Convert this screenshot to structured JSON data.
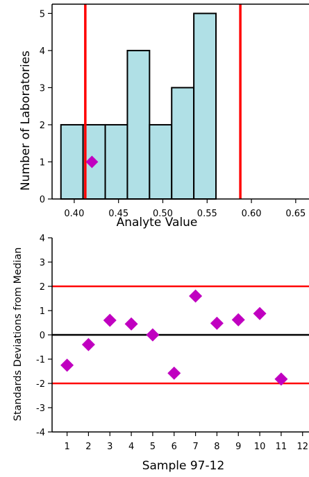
{
  "chart_data": [
    {
      "type": "bar",
      "subtype": "histogram",
      "xlabel": "Analyte Value",
      "ylabel": "Number of Laboratories",
      "xlim": [
        0.375,
        0.665
      ],
      "ylim": [
        0,
        5.25
      ],
      "x_ticks": [
        "0.40",
        "0.45",
        "0.50",
        "0.55",
        "0.60",
        "0.65"
      ],
      "x_tick_values": [
        0.4,
        0.45,
        0.5,
        0.55,
        0.6,
        0.65
      ],
      "y_ticks": [
        "0",
        "1",
        "2",
        "3",
        "4",
        "5"
      ],
      "y_tick_values": [
        0,
        1,
        2,
        3,
        4,
        5
      ],
      "bins": [
        {
          "x0": 0.385,
          "x1": 0.41,
          "count": 2
        },
        {
          "x0": 0.41,
          "x1": 0.435,
          "count": 2
        },
        {
          "x0": 0.435,
          "x1": 0.46,
          "count": 2
        },
        {
          "x0": 0.46,
          "x1": 0.485,
          "count": 4
        },
        {
          "x0": 0.485,
          "x1": 0.51,
          "count": 2
        },
        {
          "x0": 0.51,
          "x1": 0.535,
          "count": 3
        },
        {
          "x0": 0.535,
          "x1": 0.56,
          "count": 5
        }
      ],
      "limit_lines_x": [
        0.4125,
        0.5875
      ],
      "marker_point": {
        "x": 0.42,
        "y": 1
      },
      "bar_color": "#b0e0e6",
      "limit_color": "#ff0000",
      "marker_color": "#c000c0"
    },
    {
      "type": "scatter",
      "xlabel": "Sample 97-12",
      "ylabel": "Standards Deviations from Median",
      "xlim": [
        0.3,
        12.3
      ],
      "ylim": [
        -4,
        4
      ],
      "x_ticks": [
        "1",
        "2",
        "3",
        "4",
        "5",
        "6",
        "7",
        "8",
        "9",
        "10",
        "11",
        "12"
      ],
      "x_tick_values": [
        1,
        2,
        3,
        4,
        5,
        6,
        7,
        8,
        9,
        10,
        11,
        12
      ],
      "y_ticks": [
        "4",
        "3",
        "2",
        "1",
        "0",
        "-1",
        "-2",
        "-3",
        "-4"
      ],
      "y_tick_values": [
        4,
        3,
        2,
        1,
        0,
        -1,
        -2,
        -3,
        -4
      ],
      "points": [
        {
          "x": 1,
          "y": -1.25
        },
        {
          "x": 2,
          "y": -0.4
        },
        {
          "x": 3,
          "y": 0.6
        },
        {
          "x": 4,
          "y": 0.45
        },
        {
          "x": 5,
          "y": 0.0
        },
        {
          "x": 6,
          "y": -1.58
        },
        {
          "x": 7,
          "y": 1.6
        },
        {
          "x": 8,
          "y": 0.48
        },
        {
          "x": 9,
          "y": 0.62
        },
        {
          "x": 10,
          "y": 0.88
        },
        {
          "x": 11,
          "y": -1.82
        }
      ],
      "hlines": [
        {
          "y": 2,
          "color": "#ff0000"
        },
        {
          "y": 0,
          "color": "#000000"
        },
        {
          "y": -2,
          "color": "#ff0000"
        }
      ],
      "marker_color": "#c000c0"
    }
  ]
}
